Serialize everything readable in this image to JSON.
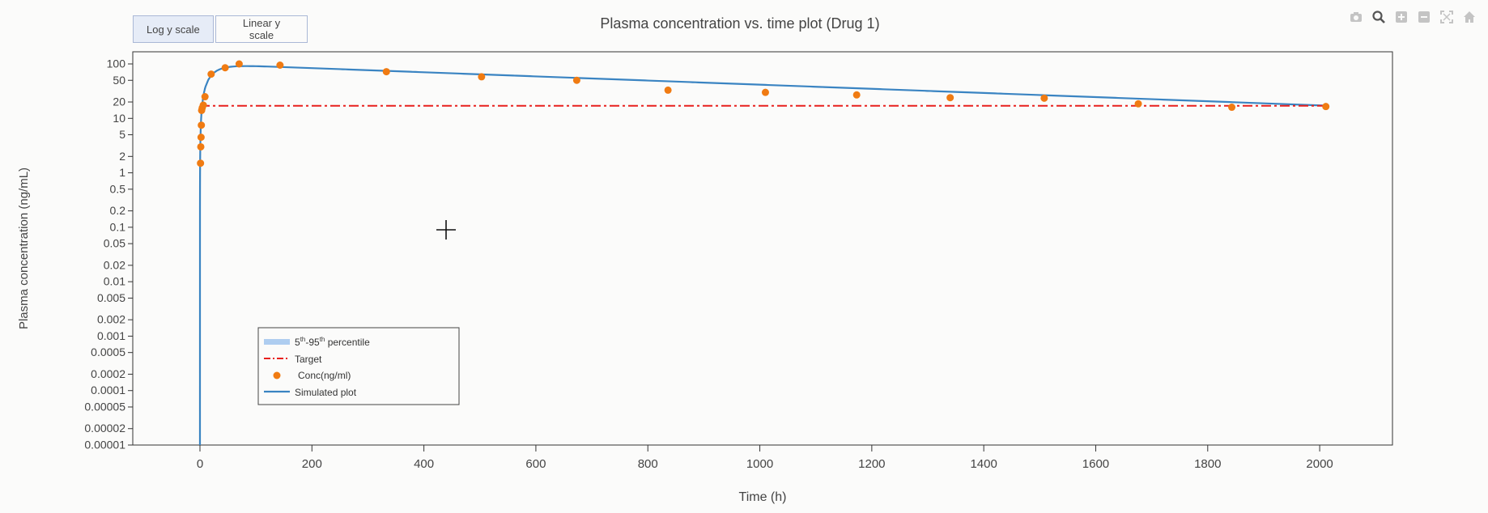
{
  "buttons": {
    "log": "Log y scale",
    "linear": "Linear y scale"
  },
  "modebar": [
    "camera-icon",
    "zoom-icon",
    "zoom-in-icon",
    "zoom-out-icon",
    "autoscale-icon",
    "home-icon"
  ],
  "colors": {
    "sim": "#3a84c2",
    "target": "#e8201d",
    "conc": "#f07b12",
    "band": "#aecdf0",
    "axis": "#333333"
  },
  "chart_data": {
    "type": "line",
    "title": "Plasma concentration vs. time plot (Drug 1)",
    "xlabel": "Time (h)",
    "ylabel": "Plasma concentration (ng/mL)",
    "xlim": [
      -120,
      2130
    ],
    "ylim": [
      1e-05,
      150
    ],
    "yscale": "log",
    "xticks": [
      0,
      200,
      400,
      600,
      800,
      1000,
      1200,
      1400,
      1600,
      1800,
      2000
    ],
    "yticks": [
      {
        "v": 100,
        "label": "100"
      },
      {
        "v": 50,
        "label": "50"
      },
      {
        "v": 20,
        "label": "20"
      },
      {
        "v": 10,
        "label": "10"
      },
      {
        "v": 5,
        "label": "5"
      },
      {
        "v": 2,
        "label": "2"
      },
      {
        "v": 1,
        "label": "1"
      },
      {
        "v": 0.5,
        "label": "0.5"
      },
      {
        "v": 0.2,
        "label": "0.2"
      },
      {
        "v": 0.1,
        "label": "0.1"
      },
      {
        "v": 0.05,
        "label": "0.05"
      },
      {
        "v": 0.02,
        "label": "0.02"
      },
      {
        "v": 0.01,
        "label": "0.01"
      },
      {
        "v": 0.005,
        "label": "0.005"
      },
      {
        "v": 0.002,
        "label": "0.002"
      },
      {
        "v": 0.001,
        "label": "0.001"
      },
      {
        "v": 0.0005,
        "label": "0.0005"
      },
      {
        "v": 0.0002,
        "label": "0.0002"
      },
      {
        "v": 0.0001,
        "label": "0.0001"
      },
      {
        "v": 5e-05,
        "label": "0.00005"
      },
      {
        "v": 2e-05,
        "label": "0.00002"
      },
      {
        "v": 1e-05,
        "label": "0.00001"
      }
    ],
    "legend_position": "bottom-left",
    "legend": [
      {
        "kind": "band",
        "label": "5-95 percentile",
        "base1": "5",
        "sup1": "th",
        "mid": "-95",
        "sup2": "th",
        "tail": " percentile"
      },
      {
        "kind": "target",
        "label": "Target"
      },
      {
        "kind": "conc",
        "label": "Conc(ng/ml)"
      },
      {
        "kind": "sim",
        "label": "Simulated plot"
      }
    ],
    "series": [
      {
        "name": "Target",
        "style": "dash-dot",
        "x": [
          0,
          2010
        ],
        "y": [
          17,
          17
        ]
      },
      {
        "name": "Conc(ng/ml)",
        "style": "markers",
        "x": [
          1,
          1.5,
          2,
          2.5,
          3,
          4,
          6,
          9,
          20,
          45,
          70,
          143,
          333,
          503,
          673,
          836,
          1010,
          1173,
          1340,
          1508,
          1676,
          1843,
          2011
        ],
        "y": [
          1.5,
          3,
          4.5,
          7.5,
          14,
          15.5,
          17.5,
          25,
          65,
          85,
          100,
          95,
          72,
          58,
          50,
          33,
          30,
          27,
          24,
          23.5,
          18.5,
          16,
          16.5
        ]
      },
      {
        "name": "Simulated plot",
        "style": "line",
        "model": {
          "A": 99.8,
          "ke": 0.000876,
          "ka": 0.05,
          "tmax": 2010
        }
      }
    ]
  }
}
